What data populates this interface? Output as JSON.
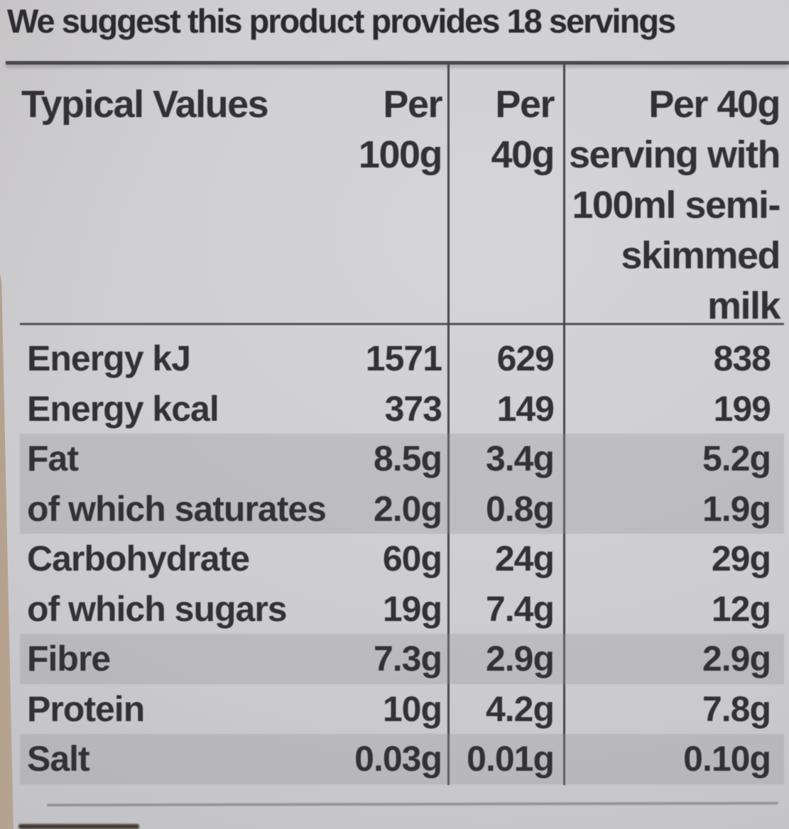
{
  "label": {
    "suggestion": "We suggest this product provides 18 servings"
  },
  "table": {
    "header": {
      "title": "Typical Values",
      "per_100g": "Per\n100g",
      "per_40g": "Per\n40g",
      "per_serving_milk": "Per 40g\nserving with\n100ml semi-\nskimmed\nmilk"
    },
    "rows": [
      {
        "label": "Energy kJ",
        "per_100g": "1571",
        "per_40g": "629",
        "per_serving_milk": "838",
        "shaded": false
      },
      {
        "label": "Energy kcal",
        "per_100g": "373",
        "per_40g": "149",
        "per_serving_milk": "199",
        "shaded": false
      },
      {
        "label": "Fat",
        "per_100g": "8.5g",
        "per_40g": "3.4g",
        "per_serving_milk": "5.2g",
        "shaded": true
      },
      {
        "label": "of which saturates",
        "per_100g": "2.0g",
        "per_40g": "0.8g",
        "per_serving_milk": "1.9g",
        "shaded": true
      },
      {
        "label": "Carbohydrate",
        "per_100g": "60g",
        "per_40g": "24g",
        "per_serving_milk": "29g",
        "shaded": false
      },
      {
        "label": "of which sugars",
        "per_100g": "19g",
        "per_40g": "7.4g",
        "per_serving_milk": "12g",
        "shaded": false
      },
      {
        "label": "Fibre",
        "per_100g": "7.3g",
        "per_40g": "2.9g",
        "per_serving_milk": "2.9g",
        "shaded": true
      },
      {
        "label": "Protein",
        "per_100g": "10g",
        "per_40g": "4.2g",
        "per_serving_milk": "7.8g",
        "shaded": false
      },
      {
        "label": "Salt",
        "per_100g": "0.03g",
        "per_40g": "0.01g",
        "per_serving_milk": "0.10g",
        "shaded": true
      }
    ]
  },
  "colors": {
    "label_background": "#cdcdd1",
    "shaded_row": "#bcbcc0",
    "text": "#313136",
    "table_line": "#46464b",
    "thin_bottom_rule": "#8d8d93",
    "package_edge_beige": "#bfac97",
    "surface_shadow": "#453b31"
  }
}
